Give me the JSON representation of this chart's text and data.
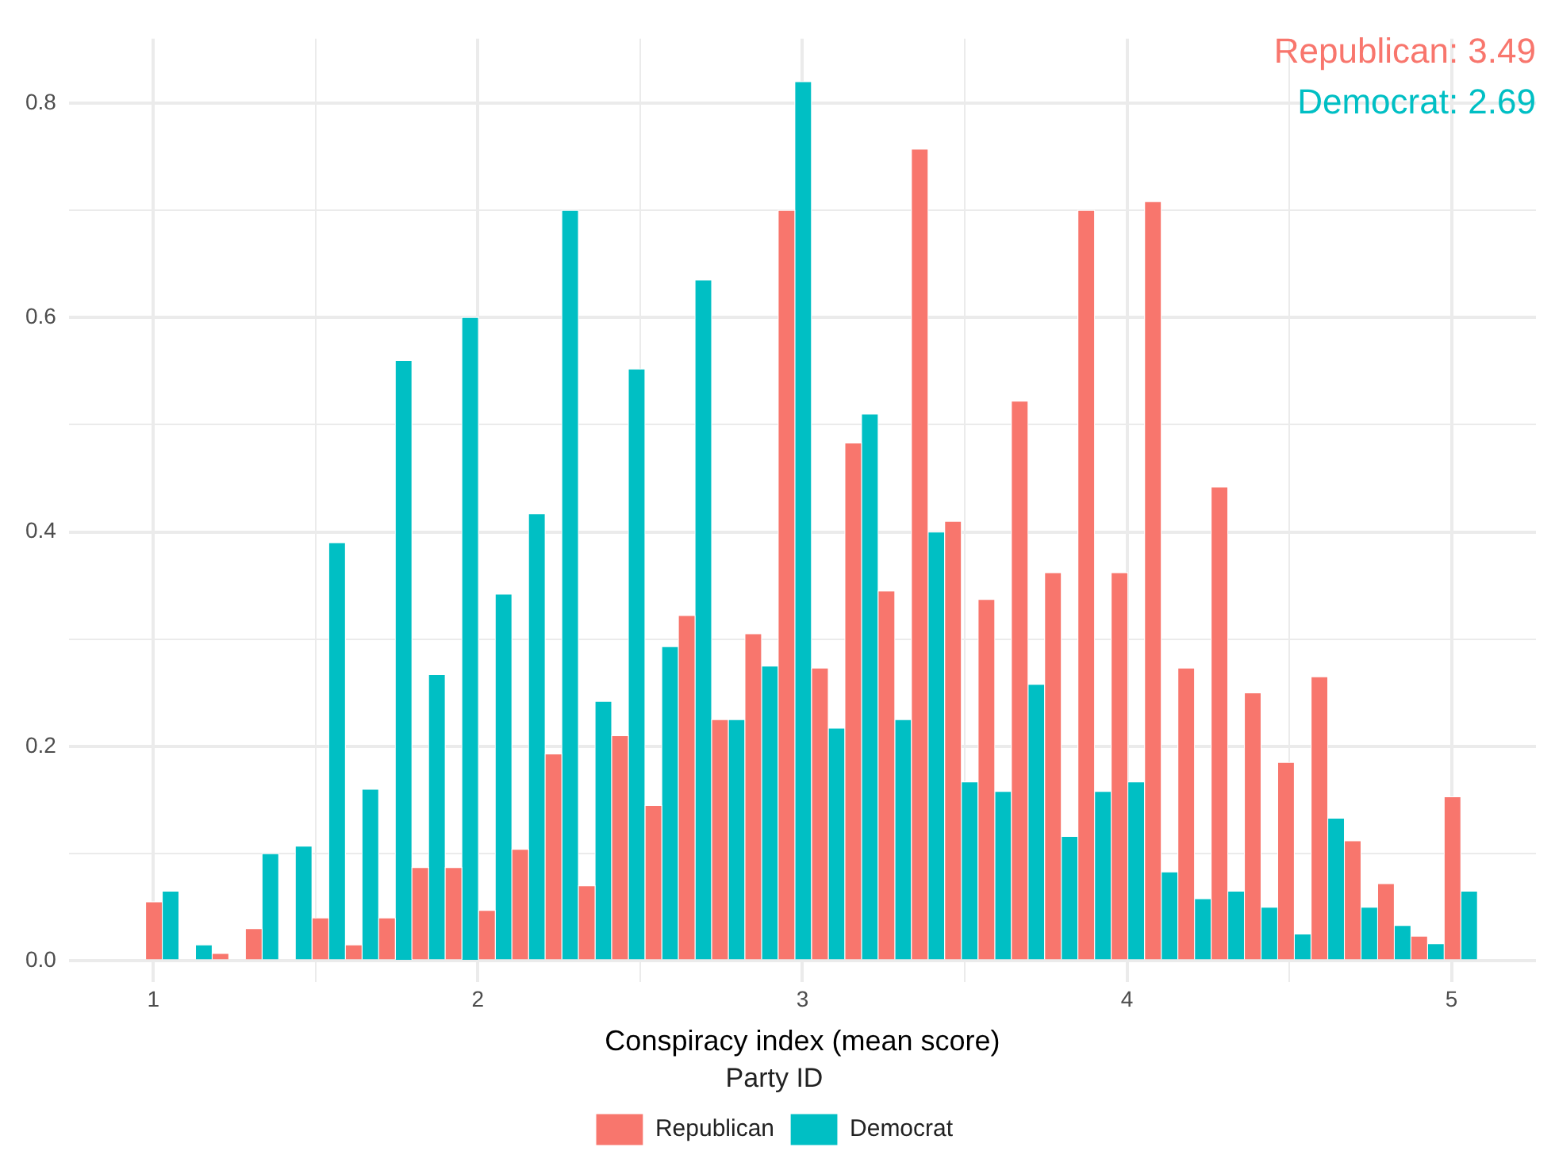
{
  "chart_data": {
    "type": "histogram",
    "bins": [
      0.976,
      1.079,
      1.181,
      1.284,
      1.386,
      1.489,
      1.592,
      1.694,
      1.797,
      1.899,
      2.002,
      2.105,
      2.207,
      2.31,
      2.412,
      2.515,
      2.618,
      2.72,
      2.823,
      2.925,
      3.028,
      3.131,
      3.233,
      3.336,
      3.438,
      3.541,
      3.644,
      3.746,
      3.849,
      3.951,
      4.054,
      4.157,
      4.259,
      4.362,
      4.464,
      4.567,
      4.67,
      4.772,
      4.875,
      4.977,
      5.08
    ],
    "series": [
      {
        "name": "Republican",
        "color": "#f8766d",
        "values": [
          0.055,
          0,
          0.007,
          0.03,
          0,
          0.04,
          0.015,
          0.04,
          0.087,
          0.087,
          0.047,
          0.104,
          0.193,
          0.07,
          0.21,
          0.145,
          0.322,
          0.225,
          0.305,
          0.7,
          0.273,
          0.483,
          0.345,
          0.757,
          0.41,
          0.337,
          0.522,
          0.362,
          0.7,
          0.362,
          0.708,
          0.273,
          0.442,
          0.25,
          0.185,
          0.265,
          0.112,
          0.072,
          0.023,
          0.153
        ]
      },
      {
        "name": "Democrat",
        "color": "#00bfc4",
        "values": [
          0.065,
          0.015,
          0,
          0.1,
          0.107,
          0.39,
          0.16,
          0.56,
          0.267,
          0.6,
          0.342,
          0.417,
          0.7,
          0.242,
          0.552,
          0.293,
          0.635,
          0.225,
          0.275,
          0.82,
          0.217,
          0.51,
          0.225,
          0.4,
          0.167,
          0.158,
          0.258,
          0.116,
          0.158,
          0.167,
          0.083,
          0.058,
          0.065,
          0.05,
          0.025,
          0.133,
          0.05,
          0.033,
          0.016,
          0.065
        ]
      }
    ],
    "xlabel": "Conspiracy index (mean score)",
    "legend_title": "Party ID",
    "legend": "bottom",
    "annotations": [
      "Republican: 3.49",
      "Democrat: 2.69"
    ],
    "xlim": [
      0.74,
      5.26
    ],
    "xticks": [
      1,
      {
        "value": 1.5,
        "label": null
      },
      2,
      {
        "value": 2.5,
        "label": null
      },
      3,
      {
        "value": 3.5,
        "label": null
      },
      4,
      {
        "value": 4.5,
        "label": null
      },
      5
    ],
    "ylim": [
      -0.02,
      0.86
    ],
    "yticks": [
      {
        "value": 0,
        "label": "0.0"
      },
      {
        "value": 0.1,
        "label": null
      },
      {
        "value": 0.2,
        "label": "0.2"
      },
      {
        "value": 0.3,
        "label": null
      },
      {
        "value": 0.4,
        "label": "0.4"
      },
      {
        "value": 0.5,
        "label": null
      },
      {
        "value": 0.6,
        "label": "0.6"
      },
      {
        "value": 0.7,
        "label": null
      },
      {
        "value": 0.8,
        "label": "0.8"
      }
    ],
    "grid": true
  }
}
